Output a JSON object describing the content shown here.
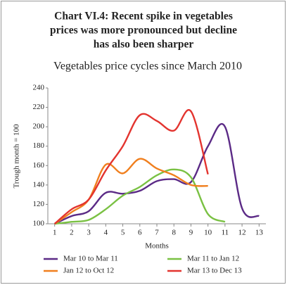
{
  "chart_data": {
    "type": "line",
    "title": [
      "Chart VI.4: Recent spike in vegetables",
      "prices was more pronounced but decline",
      "has also been sharper"
    ],
    "subtitle": "Vegetables price cycles since March 2010",
    "x_label": "Months",
    "y_label": "Trough month = 100",
    "x": [
      1,
      2,
      3,
      4,
      5,
      6,
      7,
      8,
      9,
      10,
      11,
      12,
      13
    ],
    "series": [
      {
        "name": "Mar 10 to Mar 11",
        "color": "#5b2a86",
        "values": [
          100,
          108,
          113,
          132,
          131,
          134,
          144,
          146,
          143,
          180,
          200,
          116,
          108
        ]
      },
      {
        "name": "Mar 11 to Jan 12",
        "color": "#7ac143",
        "values": [
          100,
          102,
          104,
          115,
          129,
          138,
          150,
          156,
          148,
          110,
          102,
          null,
          null
        ]
      },
      {
        "name": "Jan 12 to Oct 12",
        "color": "#f07f1e",
        "values": [
          100,
          112,
          125,
          161,
          152,
          167,
          157,
          150,
          140,
          139,
          null,
          null,
          null
        ]
      },
      {
        "name": "Mar 13 to Dec 13",
        "color": "#e3342f",
        "values": [
          100,
          115,
          125,
          155,
          180,
          212,
          206,
          196,
          216,
          151,
          null,
          null,
          null
        ]
      }
    ],
    "xlim": [
      0.6,
      13.4
    ],
    "xticks": [
      1,
      2,
      3,
      4,
      5,
      6,
      7,
      8,
      9,
      10,
      11,
      12,
      13
    ],
    "ylim": [
      100,
      240
    ],
    "yticks": [
      100,
      120,
      140,
      160,
      180,
      200,
      220,
      240
    ],
    "grid": false
  }
}
